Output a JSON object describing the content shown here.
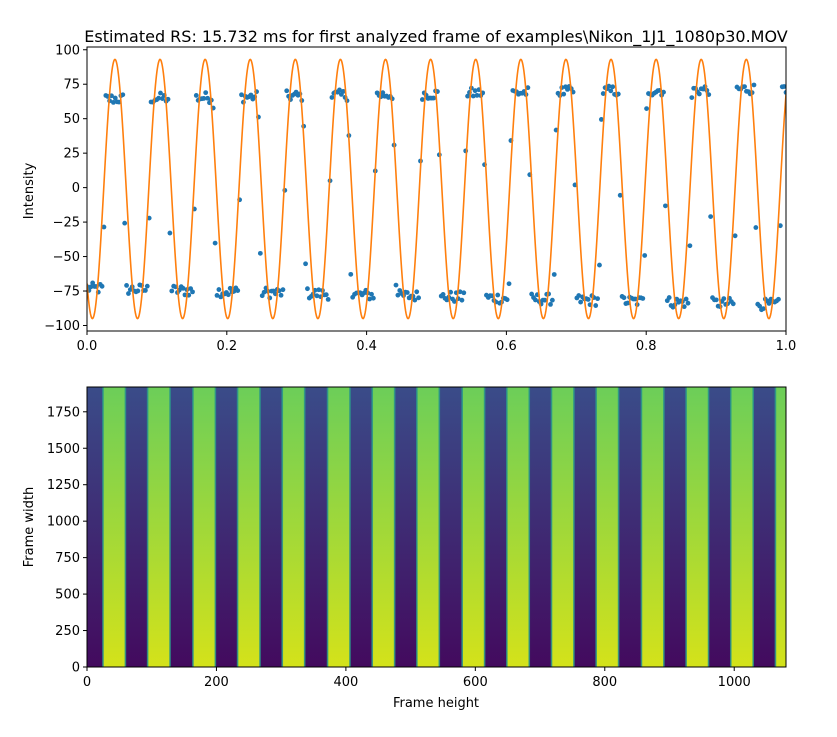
{
  "chart_data": [
    {
      "type": "scatter+line",
      "title": "Estimated RS: 15.732 ms for first analyzed frame of examples\\Nikon_1J1_1080p30.MOV",
      "xlabel": "",
      "ylabel": "Intensity",
      "xlim": [
        0.0,
        1.0
      ],
      "ylim": [
        -104,
        102
      ],
      "xticks": [
        0.0,
        0.2,
        0.4,
        0.6,
        0.8,
        1.0
      ],
      "xtick_labels": [
        "0.0",
        "0.2",
        "0.4",
        "0.6",
        "0.8",
        "1.0"
      ],
      "yticks": [
        -100,
        -75,
        -50,
        -25,
        0,
        25,
        50,
        75,
        100
      ],
      "ytick_labels": [
        "−100",
        "−75",
        "−50",
        "−25",
        "0",
        "25",
        "50",
        "75",
        "100"
      ],
      "fit": {
        "name": "sine fit",
        "color": "#ff7f0e",
        "amplitude": 94,
        "offset": -1,
        "frequency_cycles": 15.5,
        "peak_x": 0.04
      },
      "measured": {
        "name": "measured intensity",
        "color": "#1f77b4",
        "period": 0.0645,
        "first_bright_start": 0.023,
        "bright_fraction": 0.5,
        "bright_level_start": 64,
        "bright_level_end": 72,
        "dark_level_start": -73,
        "dark_level_end": -85,
        "samples_per_period": 24
      }
    },
    {
      "type": "heatmap",
      "title": "",
      "xlabel": "Frame height",
      "ylabel": "Frame width",
      "xlim": [
        0,
        1080
      ],
      "ylim": [
        0,
        1920
      ],
      "xticks": [
        0,
        200,
        400,
        600,
        800,
        1000
      ],
      "xtick_labels": [
        "0",
        "200",
        "400",
        "600",
        "800",
        "1000"
      ],
      "yticks": [
        0,
        250,
        500,
        750,
        1000,
        1250,
        1500,
        1750
      ],
      "ytick_labels": [
        "0",
        "250",
        "500",
        "750",
        "1000",
        "1250",
        "1500",
        "1750"
      ],
      "colormap": "viridis",
      "bright_stripe_starts": [
        25,
        94,
        164,
        233,
        302,
        372,
        441,
        510,
        580,
        649,
        718,
        787,
        857,
        926,
        995,
        1064
      ],
      "stripe_width": 34,
      "colors": {
        "dark_bottom": "#430a5e",
        "dark_top": "#3a4c89",
        "bright_bottom": "#d4e21a",
        "bright_top": "#6cce59",
        "edge": "#2a9a8a"
      }
    }
  ]
}
